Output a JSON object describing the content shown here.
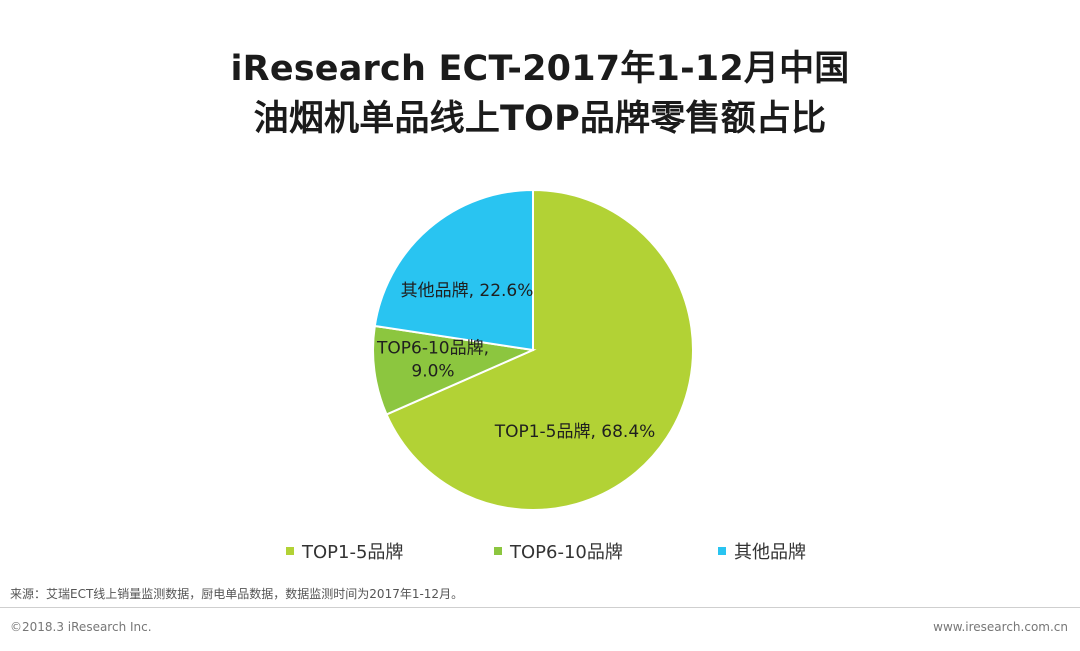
{
  "title": {
    "line1": "iResearch ECT-2017年1-12月中国",
    "line2": "油烟机单品线上TOP品牌零售额占比"
  },
  "chart_data": {
    "type": "pie",
    "title": "iResearch ECT-2017年1-12月中国油烟机单品线上TOP品牌零售额占比",
    "unit": "%",
    "slices": [
      {
        "name": "TOP1-5品牌",
        "value": 68.4,
        "color": "#b2d235",
        "label_lines": [
          "TOP1-5品牌, 68.4%"
        ]
      },
      {
        "name": "TOP6-10品牌",
        "value": 9.0,
        "color": "#8cc63f",
        "label_lines": [
          "TOP6-10品牌,",
          "9.0%"
        ]
      },
      {
        "name": "其他品牌",
        "value": 22.6,
        "color": "#29c4f1",
        "label_lines": [
          "其他品牌, 22.6%"
        ]
      }
    ],
    "start_angle": "12 o'clock",
    "direction": "clockwise",
    "legend": {
      "position": "bottom",
      "entries": [
        "TOP1-5品牌",
        "TOP6-10品牌",
        "其他品牌"
      ]
    }
  },
  "footer": {
    "source": "来源：艾瑞ECT线上销量监测数据，厨电单品数据，数据监测时间为2017年1-12月。",
    "copyright": "©2018.3 iResearch Inc.",
    "website": "www.iresearch.com.cn"
  }
}
